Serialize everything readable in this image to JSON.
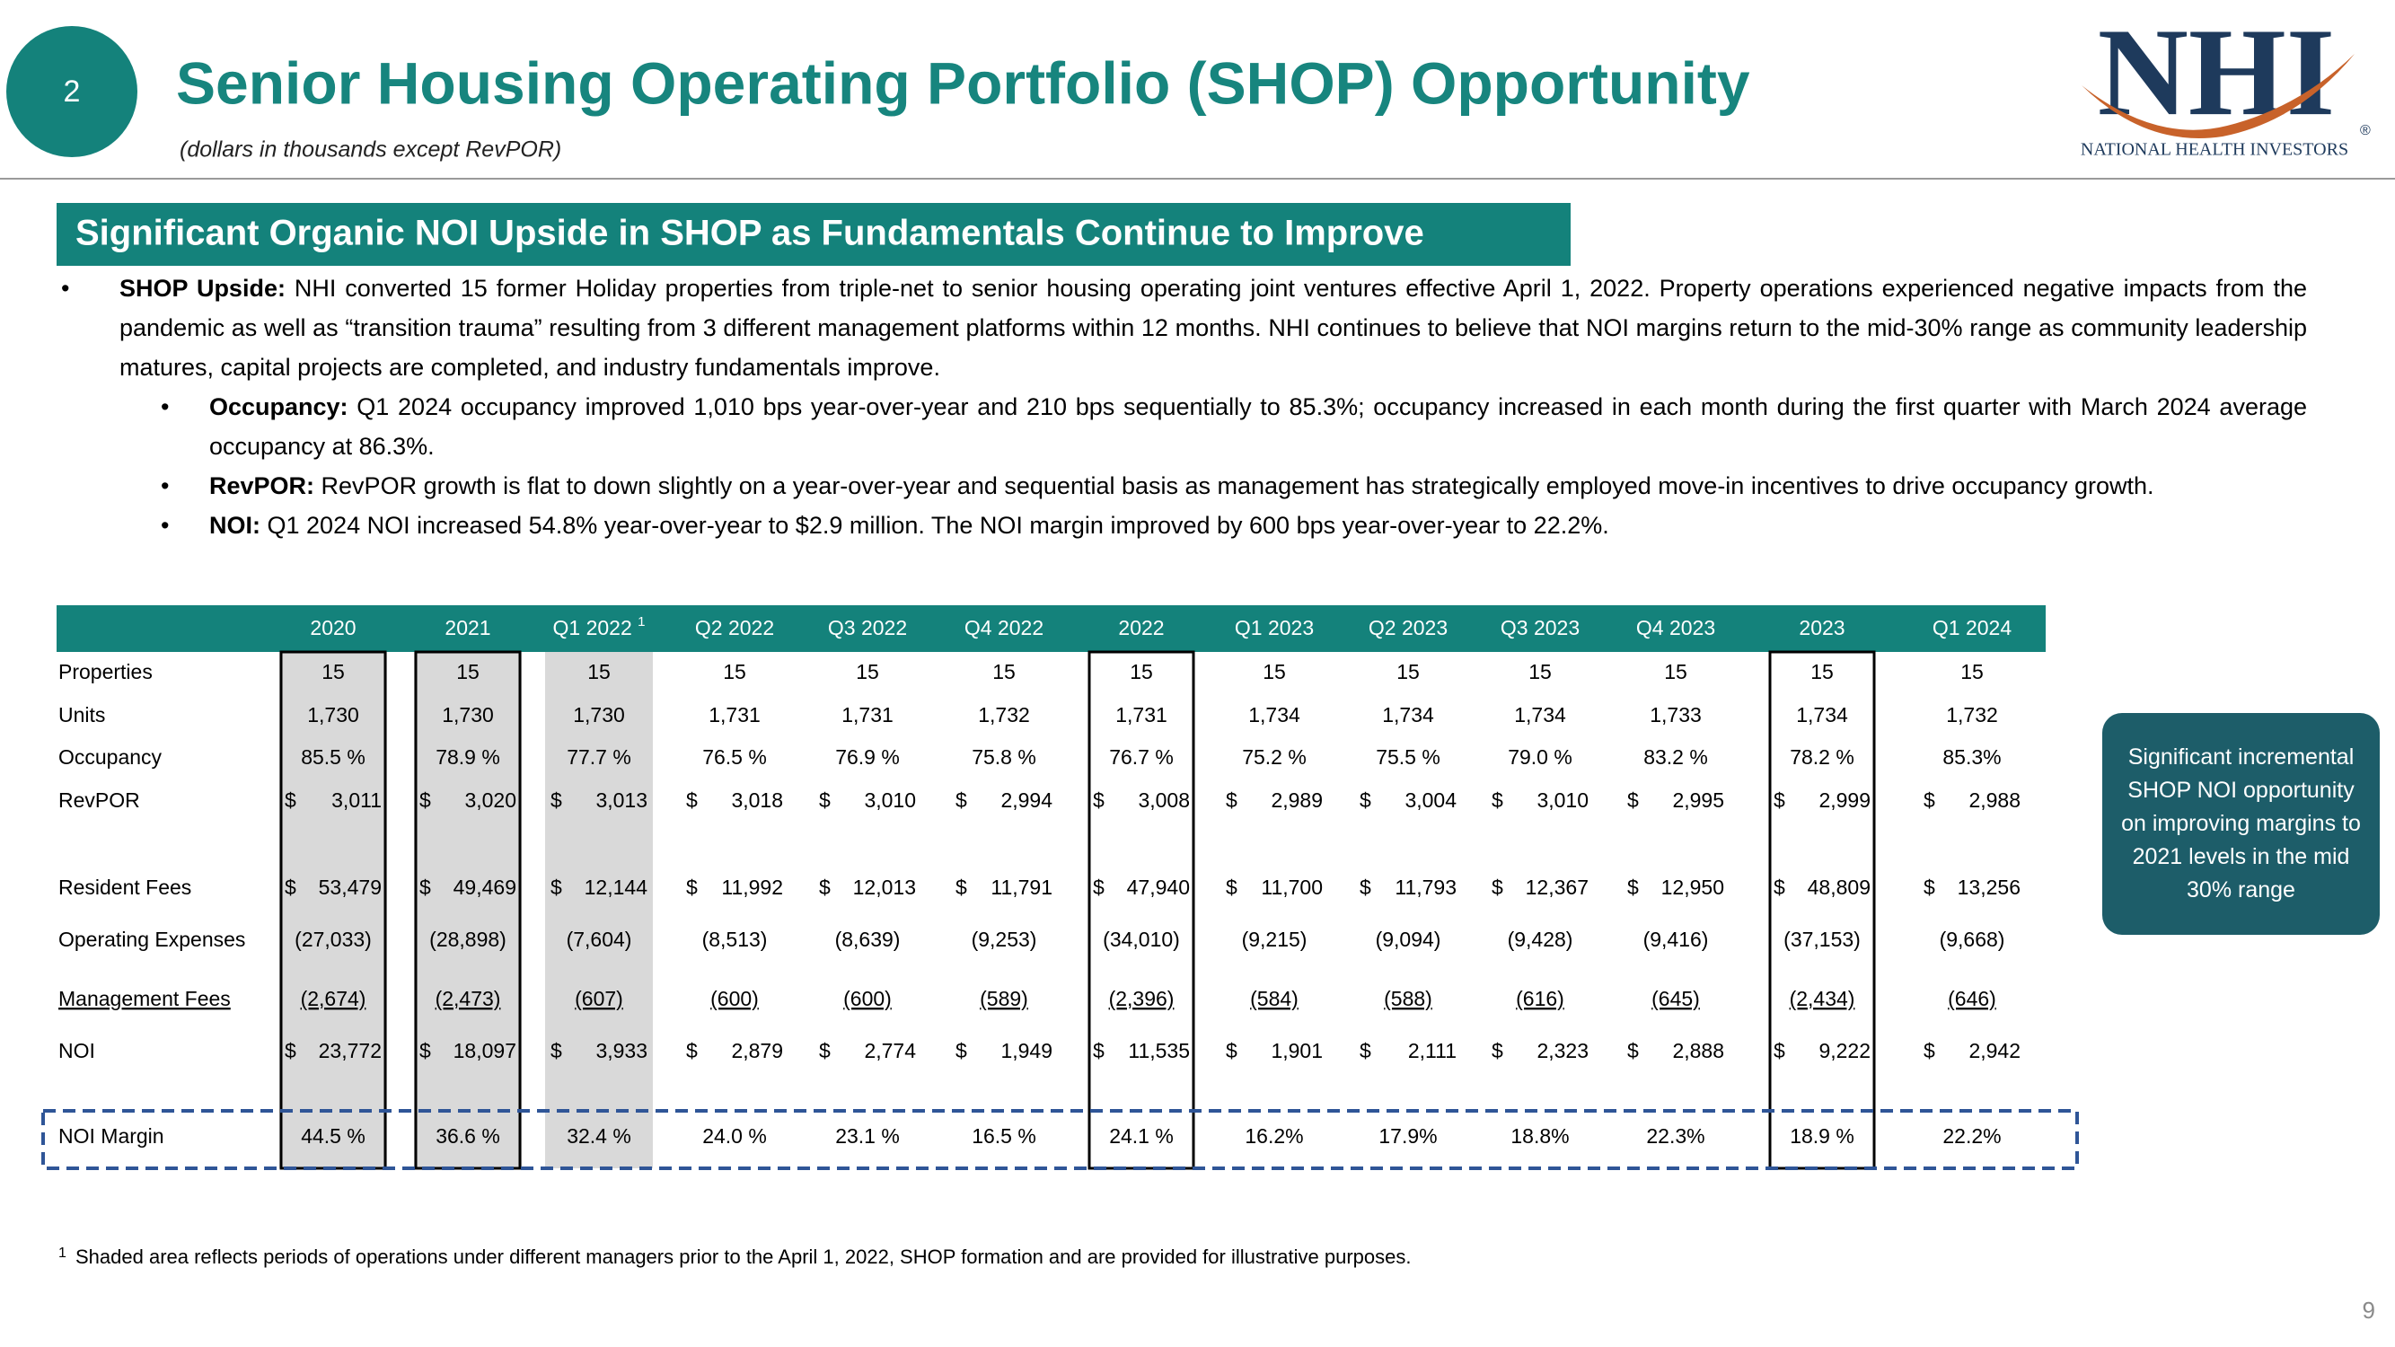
{
  "header": {
    "section_number": "2",
    "title": "Senior Housing Operating Portfolio (SHOP) Opportunity",
    "subtitle": "(dollars in thousands except RevPOR)"
  },
  "logo": {
    "letters": "NHI",
    "trademark": "®",
    "name": "NATIONAL HEALTH INVESTORS"
  },
  "banner": "Significant Organic NOI Upside in SHOP as Fundamentals Continue to Improve",
  "bullets": [
    {
      "label": "SHOP Upside:",
      "text": "NHI converted 15 former Holiday properties from triple-net to senior housing operating joint ventures effective April 1, 2022.  Property operations experienced negative impacts from the pandemic as well as “transition trauma” resulting from 3 different management platforms within 12 months.  NHI continues to believe that NOI margins return to the mid-30% range as community leadership matures, capital projects are completed, and industry fundamentals improve.",
      "sub_bullets": [
        {
          "label": "Occupancy:",
          "text": "Q1 2024 occupancy improved 1,010 bps year-over-year and 210 bps sequentially to 85.3%; occupancy increased in each month during the first quarter with March 2024 average occupancy at 86.3%."
        },
        {
          "label": "RevPOR:",
          "text": "RevPOR growth is flat to down slightly on a year-over-year and sequential basis as management has strategically employed move-in incentives to drive occupancy growth."
        },
        {
          "label": "NOI:",
          "text": "Q1 2024 NOI increased 54.8% year-over-year to $2.9 million.  The NOI margin improved by 600 bps year-over-year to 22.2%."
        }
      ]
    }
  ],
  "table": {
    "columns": [
      {
        "label": "2020",
        "shaded": true,
        "boxed": true
      },
      {
        "label": "2021",
        "shaded": true,
        "boxed": true
      },
      {
        "label": "Q1 2022",
        "note": "1",
        "shaded": true
      },
      {
        "label": "Q2 2022"
      },
      {
        "label": "Q3 2022"
      },
      {
        "label": "Q4 2022"
      },
      {
        "label": "2022",
        "boxed": true
      },
      {
        "label": "Q1 2023"
      },
      {
        "label": "Q2 2023"
      },
      {
        "label": "Q3 2023"
      },
      {
        "label": "Q4 2023"
      },
      {
        "label": "2023",
        "boxed": true
      },
      {
        "label": "Q1 2024"
      }
    ],
    "rows": [
      {
        "label": "Properties",
        "cells": [
          "15",
          "15",
          "15",
          "15",
          "15",
          "15",
          "15",
          "15",
          "15",
          "15",
          "15",
          "15",
          "15"
        ]
      },
      {
        "label": "Units",
        "cells": [
          "1,730",
          "1,730",
          "1,730",
          "1,731",
          "1,731",
          "1,732",
          "1,731",
          "1,734",
          "1,734",
          "1,734",
          "1,733",
          "1,734",
          "1,732"
        ]
      },
      {
        "label": "Occupancy",
        "cells": [
          "85.5 %",
          "78.9 %",
          "77.7 %",
          "76.5 %",
          "76.9 %",
          "75.8 %",
          "76.7 %",
          "75.2 %",
          "75.5 %",
          "79.0 %",
          "83.2 %",
          "78.2 %",
          "85.3%"
        ]
      },
      {
        "label": "RevPOR",
        "currency": "$",
        "cells": [
          "3,011",
          "3,020",
          "3,013",
          "3,018",
          "3,010",
          "2,994",
          "3,008",
          "2,989",
          "3,004",
          "3,010",
          "2,995",
          "2,999",
          "2,988"
        ]
      },
      {
        "label": "Resident Fees",
        "currency": "$",
        "cells": [
          "53,479",
          "49,469",
          "12,144",
          "11,992",
          "12,013",
          "11,791",
          "47,940",
          "11,700",
          "11,793",
          "12,367",
          "12,950",
          "48,809",
          "13,256"
        ]
      },
      {
        "label": "Operating Expenses",
        "cells": [
          "(27,033)",
          "(28,898)",
          "(7,604)",
          "(8,513)",
          "(8,639)",
          "(9,253)",
          "(34,010)",
          "(9,215)",
          "(9,094)",
          "(9,428)",
          "(9,416)",
          "(37,153)",
          "(9,668)"
        ]
      },
      {
        "label": "Management Fees",
        "underline": true,
        "cells": [
          "(2,674)",
          "(2,473)",
          "(607)",
          "(600)",
          "(600)",
          "(589)",
          "(2,396)",
          "(584)",
          "(588)",
          "(616)",
          "(645)",
          "(2,434)",
          "(646)"
        ]
      },
      {
        "label": "NOI",
        "currency": "$",
        "cells": [
          "23,772",
          "18,097",
          "3,933",
          "2,879",
          "2,774",
          "1,949",
          "11,535",
          "1,901",
          "2,111",
          "2,323",
          "2,888",
          "9,222",
          "2,942"
        ]
      },
      {
        "label": "NOI Margin",
        "cells": [
          "44.5 %",
          "36.6 %",
          "32.4 %",
          "24.0 %",
          "23.1 %",
          "16.5 %",
          "24.1 %",
          "16.2%",
          "17.9%",
          "18.8%",
          "22.3%",
          "18.9 %",
          "22.2%"
        ]
      }
    ]
  },
  "callout": "Significant incremental SHOP NOI opportunity on improving margins to 2021 levels in the mid 30% range",
  "footnote": {
    "marker": "1",
    "text": "Shaded area reflects periods of operations under different managers prior to the April 1, 2022, SHOP formation and are provided for illustrative purposes."
  },
  "page_number": "9"
}
